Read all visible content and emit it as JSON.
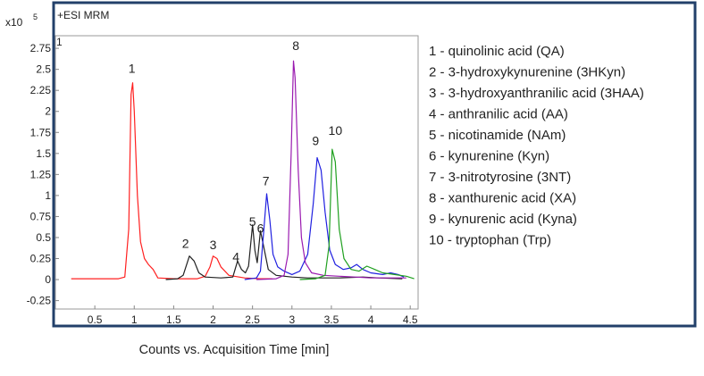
{
  "chart_data": {
    "type": "line",
    "title": "+ESI MRM",
    "scale_label": "x10",
    "scale_exponent": "5",
    "corner_mark": "1",
    "xlabel": "Counts vs. Acquisition Time [min]",
    "ylabel": "",
    "xlim": [
      0,
      4.6
    ],
    "ylim": [
      -0.35,
      2.9
    ],
    "x_ticks": [
      "0.5",
      "1",
      "1.5",
      "2",
      "2.5",
      "3",
      "3.5",
      "4",
      "4.5"
    ],
    "y_ticks": [
      "2.75",
      "2.5",
      "2.25",
      "2",
      "1.75",
      "1.5",
      "1.25",
      "1",
      "0.75",
      "0.5",
      "0.25",
      "0",
      "-0.25"
    ],
    "grid": false,
    "legend_position": "right",
    "legend": [
      "1 - quinolinic acid (QA)",
      "2 - 3-hydroxykynurenine (3HKyn)",
      "3 - 3-hydroxyanthranilic acid (3HAA)",
      "4 - anthranilic acid (AA)",
      "5 - nicotinamide (NAm)",
      "6 - kynurenine (Kyn)",
      "7 - 3-nitrotyrosine (3NT)",
      "8 - xanthurenic acid (XA)",
      "9 - kynurenic acid (Kyna)",
      "10 - tryptophan (Trp)"
    ],
    "peak_labels": [
      {
        "text": "1",
        "x": 0.97,
        "y": 2.46
      },
      {
        "text": "2",
        "x": 1.65,
        "y": 0.38
      },
      {
        "text": "3",
        "x": 2.0,
        "y": 0.36
      },
      {
        "text": "4",
        "x": 2.29,
        "y": 0.22
      },
      {
        "text": "5",
        "x": 2.5,
        "y": 0.64
      },
      {
        "text": "6",
        "x": 2.6,
        "y": 0.56
      },
      {
        "text": "7",
        "x": 2.67,
        "y": 1.12
      },
      {
        "text": "8",
        "x": 3.05,
        "y": 2.73
      },
      {
        "text": "9",
        "x": 3.3,
        "y": 1.6
      },
      {
        "text": "10",
        "x": 3.55,
        "y": 1.72
      }
    ],
    "series": [
      {
        "color": "#ff2020",
        "points": [
          [
            0.2,
            0.01
          ],
          [
            0.5,
            0.01
          ],
          [
            0.8,
            0.01
          ],
          [
            0.88,
            0.03
          ],
          [
            0.93,
            0.6
          ],
          [
            0.96,
            2.2
          ],
          [
            0.98,
            2.34
          ],
          [
            1.0,
            2.0
          ],
          [
            1.04,
            1.0
          ],
          [
            1.08,
            0.45
          ],
          [
            1.13,
            0.25
          ],
          [
            1.18,
            0.18
          ],
          [
            1.24,
            0.12
          ],
          [
            1.3,
            0.02
          ],
          [
            1.5,
            0.01
          ],
          [
            1.8,
            0.01
          ],
          [
            1.9,
            0.04
          ],
          [
            1.96,
            0.15
          ],
          [
            2.0,
            0.28
          ],
          [
            2.05,
            0.25
          ],
          [
            2.1,
            0.15
          ],
          [
            2.2,
            0.05
          ],
          [
            2.4,
            0.02
          ],
          [
            2.6,
            0.01
          ],
          [
            2.75,
            0.01
          ]
        ]
      },
      {
        "color": "#202020",
        "points": [
          [
            1.4,
            0.0
          ],
          [
            1.55,
            0.01
          ],
          [
            1.62,
            0.05
          ],
          [
            1.7,
            0.28
          ],
          [
            1.76,
            0.22
          ],
          [
            1.82,
            0.08
          ],
          [
            1.9,
            0.03
          ],
          [
            2.1,
            0.02
          ],
          [
            2.25,
            0.03
          ],
          [
            2.31,
            0.22
          ],
          [
            2.36,
            0.12
          ],
          [
            2.41,
            0.08
          ],
          [
            2.45,
            0.16
          ],
          [
            2.5,
            0.65
          ],
          [
            2.53,
            0.35
          ],
          [
            2.56,
            0.2
          ],
          [
            2.6,
            0.58
          ],
          [
            2.64,
            0.4
          ],
          [
            2.7,
            0.12
          ],
          [
            2.8,
            0.05
          ],
          [
            3.0,
            0.03
          ],
          [
            3.2,
            0.02
          ],
          [
            3.6,
            0.02
          ],
          [
            3.9,
            0.03
          ],
          [
            4.1,
            0.02
          ],
          [
            4.4,
            0.01
          ]
        ]
      },
      {
        "color": "#2020e0",
        "points": [
          [
            2.4,
            0.0
          ],
          [
            2.55,
            0.02
          ],
          [
            2.6,
            0.1
          ],
          [
            2.64,
            0.55
          ],
          [
            2.68,
            1.02
          ],
          [
            2.72,
            0.7
          ],
          [
            2.76,
            0.3
          ],
          [
            2.82,
            0.15
          ],
          [
            2.9,
            0.1
          ],
          [
            3.0,
            0.06
          ],
          [
            3.1,
            0.1
          ],
          [
            3.2,
            0.3
          ],
          [
            3.27,
            0.9
          ],
          [
            3.32,
            1.45
          ],
          [
            3.37,
            1.3
          ],
          [
            3.42,
            0.8
          ],
          [
            3.48,
            0.35
          ],
          [
            3.55,
            0.18
          ],
          [
            3.65,
            0.12
          ],
          [
            3.75,
            0.14
          ],
          [
            3.82,
            0.18
          ],
          [
            3.9,
            0.12
          ],
          [
            4.0,
            0.08
          ],
          [
            4.15,
            0.06
          ],
          [
            4.25,
            0.08
          ],
          [
            4.35,
            0.06
          ],
          [
            4.42,
            0.03
          ]
        ]
      },
      {
        "color": "#9a1ab0",
        "points": [
          [
            2.55,
            0.0
          ],
          [
            2.8,
            0.01
          ],
          [
            2.9,
            0.05
          ],
          [
            2.95,
            0.3
          ],
          [
            2.99,
            1.5
          ],
          [
            3.02,
            2.6
          ],
          [
            3.04,
            2.4
          ],
          [
            3.08,
            1.3
          ],
          [
            3.12,
            0.5
          ],
          [
            3.17,
            0.2
          ],
          [
            3.25,
            0.08
          ],
          [
            3.4,
            0.05
          ],
          [
            3.6,
            0.04
          ],
          [
            3.8,
            0.03
          ],
          [
            4.0,
            0.02
          ],
          [
            4.2,
            0.02
          ],
          [
            4.45,
            0.02
          ]
        ]
      },
      {
        "color": "#20a020",
        "points": [
          [
            3.1,
            0.0
          ],
          [
            3.3,
            0.01
          ],
          [
            3.42,
            0.05
          ],
          [
            3.47,
            0.4
          ],
          [
            3.51,
            1.55
          ],
          [
            3.55,
            1.4
          ],
          [
            3.6,
            0.6
          ],
          [
            3.66,
            0.25
          ],
          [
            3.75,
            0.12
          ],
          [
            3.85,
            0.1
          ],
          [
            3.95,
            0.16
          ],
          [
            4.05,
            0.12
          ],
          [
            4.15,
            0.08
          ],
          [
            4.3,
            0.06
          ],
          [
            4.45,
            0.04
          ],
          [
            4.55,
            0.01
          ]
        ]
      }
    ]
  }
}
